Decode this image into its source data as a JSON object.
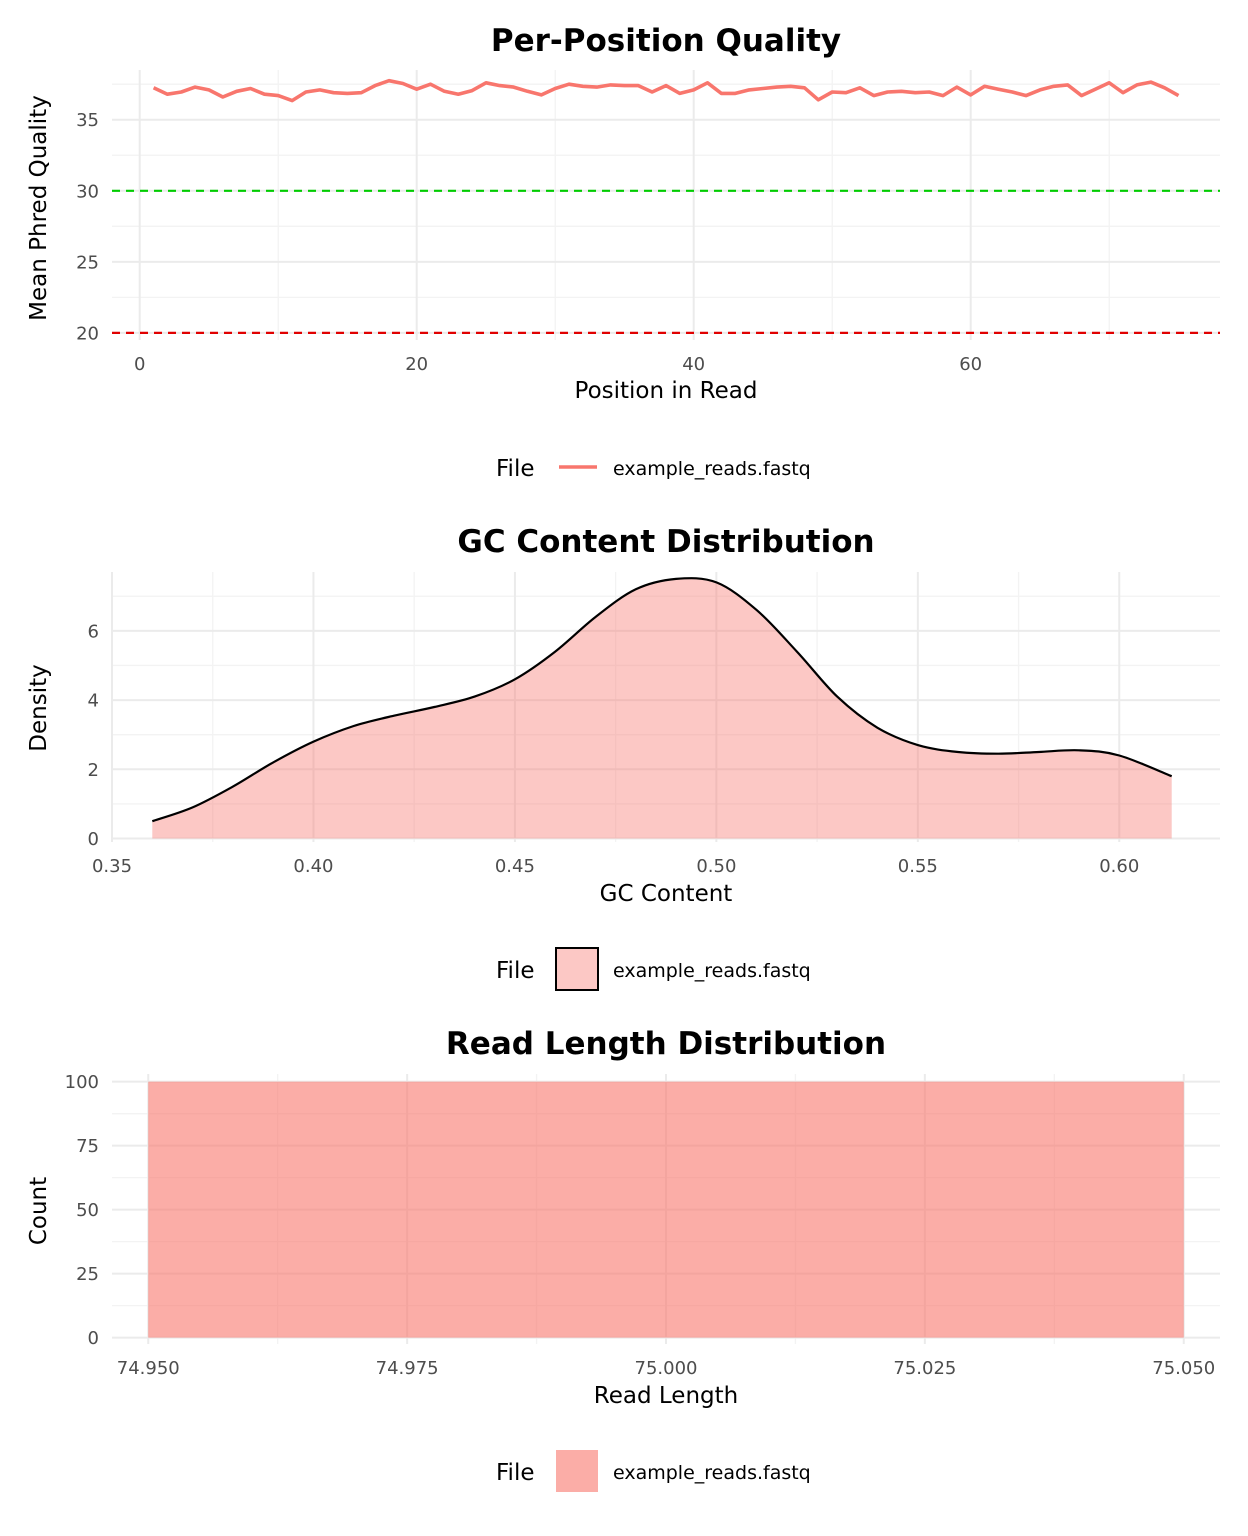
{
  "colors": {
    "series": "#F8766D",
    "threshold_good": "#00CC00",
    "threshold_bad": "#E00000"
  },
  "chart_data": [
    {
      "type": "line",
      "title": "Per-Position Quality",
      "xlabel": "Position in Read",
      "ylabel": "Mean Phred Quality",
      "xlim": [
        -2,
        78
      ],
      "ylim": [
        19.5,
        38.5
      ],
      "x_ticks": [
        0,
        20,
        40,
        60
      ],
      "y_ticks": [
        20,
        25,
        30,
        35
      ],
      "grid": true,
      "hlines": [
        {
          "y": 30,
          "color": "#00CC00",
          "style": "dashed"
        },
        {
          "y": 20,
          "color": "#E00000",
          "style": "dashed"
        }
      ],
      "legend": {
        "title": "File",
        "placement": "bottom",
        "entries": [
          "example_reads.fastq"
        ]
      },
      "series": [
        {
          "name": "example_reads.fastq",
          "x": [
            1,
            2,
            3,
            4,
            5,
            6,
            7,
            8,
            9,
            10,
            11,
            12,
            13,
            14,
            15,
            16,
            17,
            18,
            19,
            20,
            21,
            22,
            23,
            24,
            25,
            26,
            27,
            28,
            29,
            30,
            31,
            32,
            33,
            34,
            35,
            36,
            37,
            38,
            39,
            40,
            41,
            42,
            43,
            44,
            45,
            46,
            47,
            48,
            49,
            50,
            51,
            52,
            53,
            54,
            55,
            56,
            57,
            58,
            59,
            60,
            61,
            62,
            63,
            64,
            65,
            66,
            67,
            68,
            69,
            70,
            71,
            72,
            73,
            74,
            75
          ],
          "y": [
            37.25,
            36.8,
            36.95,
            37.3,
            37.1,
            36.6,
            37.0,
            37.2,
            36.8,
            36.7,
            36.35,
            36.95,
            37.1,
            36.9,
            36.85,
            36.9,
            37.4,
            37.75,
            37.55,
            37.15,
            37.5,
            37.0,
            36.8,
            37.05,
            37.6,
            37.4,
            37.3,
            37.0,
            36.75,
            37.2,
            37.5,
            37.35,
            37.3,
            37.45,
            37.4,
            37.4,
            36.95,
            37.4,
            36.85,
            37.1,
            37.6,
            36.85,
            36.85,
            37.1,
            37.2,
            37.3,
            37.35,
            37.25,
            36.4,
            36.95,
            36.9,
            37.25,
            36.7,
            36.95,
            37.0,
            36.9,
            36.95,
            36.7,
            37.3,
            36.75,
            37.35,
            37.15,
            36.95,
            36.7,
            37.1,
            37.35,
            37.45,
            36.7,
            37.15,
            37.6,
            36.9,
            37.45,
            37.65,
            37.25,
            36.7
          ]
        }
      ]
    },
    {
      "type": "area",
      "title": "GC Content Distribution",
      "xlabel": "GC Content",
      "ylabel": "Density",
      "xlim": [
        0.35,
        0.625
      ],
      "ylim": [
        -0.1,
        7.7
      ],
      "x_ticks": [
        0.35,
        0.4,
        0.45,
        0.5,
        0.55,
        0.6
      ],
      "x_tick_labels": [
        "0.35",
        "0.40",
        "0.45",
        "0.50",
        "0.55",
        "0.60"
      ],
      "y_ticks": [
        0,
        2,
        4,
        6
      ],
      "grid": true,
      "legend": {
        "title": "File",
        "placement": "bottom",
        "entries": [
          "example_reads.fastq"
        ]
      },
      "series": [
        {
          "name": "example_reads.fastq",
          "x": [
            0.36,
            0.37,
            0.38,
            0.39,
            0.4,
            0.41,
            0.42,
            0.43,
            0.44,
            0.45,
            0.46,
            0.47,
            0.48,
            0.49,
            0.5,
            0.51,
            0.52,
            0.53,
            0.54,
            0.55,
            0.56,
            0.57,
            0.58,
            0.59,
            0.6,
            0.613
          ],
          "y": [
            0.5,
            0.9,
            1.5,
            2.2,
            2.8,
            3.25,
            3.55,
            3.8,
            4.1,
            4.6,
            5.4,
            6.4,
            7.2,
            7.5,
            7.4,
            6.6,
            5.4,
            4.1,
            3.2,
            2.7,
            2.5,
            2.45,
            2.5,
            2.55,
            2.4,
            1.8
          ]
        }
      ]
    },
    {
      "type": "bar",
      "title": "Read Length Distribution",
      "xlabel": "Read Length",
      "ylabel": "Count",
      "xlim": [
        74.9465,
        75.0535
      ],
      "ylim": [
        -2.5,
        103
      ],
      "x_ticks": [
        74.95,
        74.975,
        75.0,
        75.025,
        75.05
      ],
      "x_tick_labels": [
        "74.950",
        "74.975",
        "75.000",
        "75.025",
        "75.050"
      ],
      "y_ticks": [
        0,
        25,
        50,
        75,
        100
      ],
      "grid": true,
      "legend": {
        "title": "File",
        "placement": "bottom",
        "entries": [
          "example_reads.fastq"
        ]
      },
      "series": [
        {
          "name": "example_reads.fastq",
          "bins": [
            {
              "x0": 74.95,
              "x1": 75.05,
              "count": 100
            }
          ]
        }
      ]
    }
  ]
}
